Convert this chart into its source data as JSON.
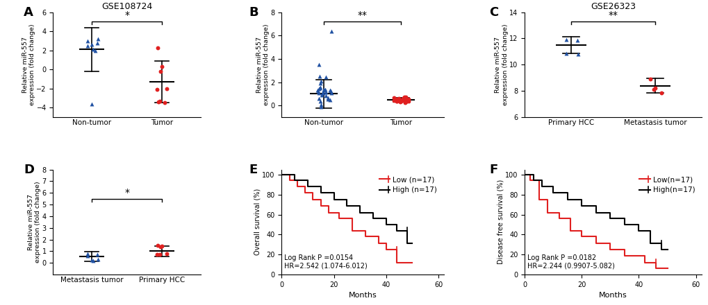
{
  "panel_A": {
    "title": "GSE108724",
    "ylabel": "Relative miR-557\nexpression (fold change)",
    "groups": [
      "Non-tumor",
      "Tumor"
    ],
    "means": [
      2.1,
      -1.3
    ],
    "sds": [
      2.3,
      2.2
    ],
    "non_tumor_points": [
      3.0,
      2.8,
      2.5,
      3.2,
      2.6,
      2.1,
      2.0,
      -3.6
    ],
    "tumor_points": [
      2.3,
      0.3,
      -0.2,
      -2.0,
      -2.1,
      -3.3,
      -3.4,
      -3.5
    ],
    "ylim": [
      -5,
      6
    ],
    "yticks": [
      -4,
      -2,
      0,
      2,
      4,
      6
    ],
    "sig": "*"
  },
  "panel_B": {
    "title": "",
    "ylabel": "Relative miR-557\nexpression (fold change)",
    "groups": [
      "Non-tumor",
      "Tumor"
    ],
    "means": [
      1.0,
      0.5
    ],
    "sds": [
      1.2,
      0.18
    ],
    "non_tumor_mean": 1.0,
    "tumor_mean": 0.5,
    "ylim": [
      -1,
      8
    ],
    "yticks": [
      0,
      2,
      4,
      6,
      8
    ],
    "sig": "**"
  },
  "panel_C": {
    "title": "GSE26323",
    "ylabel": "Relative miR-557\nexpression (fold change)",
    "groups": [
      "Primary HCC",
      "Metastasis tumor"
    ],
    "means": [
      11.5,
      8.4
    ],
    "sds": [
      0.65,
      0.55
    ],
    "primary_points": [
      11.9,
      11.85,
      10.85,
      10.8
    ],
    "metastasis_points": [
      8.9,
      8.2,
      8.1,
      7.85
    ],
    "ylim": [
      6,
      14
    ],
    "yticks": [
      6,
      8,
      10,
      12,
      14
    ],
    "sig": "**"
  },
  "panel_D": {
    "title": "",
    "ylabel": "Relative miR-557\nexpression (fold change)",
    "groups": [
      "Metastasis tumor",
      "Primary HCC"
    ],
    "means": [
      0.55,
      1.0
    ],
    "sds": [
      0.4,
      0.45
    ],
    "metastasis_points": [
      0.8,
      0.7,
      0.6,
      0.3,
      0.25,
      0.2
    ],
    "primary_points": [
      1.5,
      1.45,
      1.4,
      0.8,
      0.75,
      0.7
    ],
    "ylim": [
      -1,
      8
    ],
    "yticks": [
      0,
      1,
      2,
      3,
      4,
      5,
      6,
      7,
      8
    ],
    "sig": "*"
  },
  "panel_E": {
    "xlabel": "Months",
    "ylabel": "Overall survival (%)",
    "legend_low": "Low (n=17)",
    "legend_high": "High (n=17)",
    "annotation": "Log Rank P =0.0154\nHR=2.542 (1.074-6.012)",
    "low_x": [
      0,
      3,
      3,
      6,
      6,
      9,
      9,
      12,
      12,
      15,
      15,
      18,
      18,
      22,
      22,
      27,
      27,
      32,
      32,
      37,
      37,
      40,
      40,
      44,
      44,
      50
    ],
    "low_y": [
      100,
      100,
      94,
      94,
      88,
      88,
      82,
      82,
      75,
      75,
      69,
      69,
      62,
      62,
      56,
      56,
      44,
      44,
      38,
      38,
      31,
      31,
      25,
      25,
      12,
      12
    ],
    "high_x": [
      0,
      5,
      5,
      10,
      10,
      15,
      15,
      20,
      20,
      25,
      25,
      30,
      30,
      35,
      35,
      40,
      40,
      44,
      44,
      48,
      48,
      50
    ],
    "high_y": [
      100,
      100,
      94,
      94,
      88,
      88,
      82,
      82,
      75,
      75,
      69,
      69,
      62,
      62,
      56,
      56,
      50,
      50,
      44,
      44,
      31,
      31
    ],
    "censor_low_x": [
      44
    ],
    "censor_low_y": [
      25
    ],
    "censor_high_x": [
      48
    ],
    "censor_high_y": [
      44
    ],
    "xlim": [
      0,
      62
    ],
    "ylim": [
      0,
      105
    ],
    "xticks": [
      0,
      20,
      40,
      60
    ],
    "yticks": [
      0,
      20,
      40,
      60,
      80,
      100
    ]
  },
  "panel_F": {
    "xlabel": "Months",
    "ylabel": "Disease free survival (%)",
    "legend_low": "Low(n=17)",
    "legend_high": "High(n=17)",
    "annotation": "Log Rank P =0.0182\nHR=2.244 (0.9907-5.082)",
    "low_x": [
      0,
      2,
      2,
      5,
      5,
      8,
      8,
      12,
      12,
      16,
      16,
      20,
      20,
      25,
      25,
      30,
      30,
      35,
      35,
      42,
      42,
      46,
      46,
      50
    ],
    "low_y": [
      100,
      100,
      94,
      94,
      75,
      75,
      62,
      62,
      56,
      56,
      44,
      44,
      38,
      38,
      31,
      31,
      25,
      25,
      19,
      19,
      12,
      12,
      6,
      6
    ],
    "high_x": [
      0,
      3,
      3,
      6,
      6,
      10,
      10,
      15,
      15,
      20,
      20,
      25,
      25,
      30,
      30,
      35,
      35,
      40,
      40,
      44,
      44,
      48,
      48,
      50
    ],
    "high_y": [
      100,
      100,
      94,
      94,
      88,
      88,
      82,
      82,
      75,
      75,
      69,
      69,
      62,
      62,
      56,
      56,
      50,
      50,
      44,
      44,
      31,
      31,
      25,
      25
    ],
    "censor_low_x": [
      46
    ],
    "censor_low_y": [
      12
    ],
    "censor_high_x": [
      48
    ],
    "censor_high_y": [
      31
    ],
    "xlim": [
      0,
      62
    ],
    "ylim": [
      0,
      105
    ],
    "xticks": [
      0,
      20,
      40,
      60
    ],
    "yticks": [
      0,
      20,
      40,
      60,
      80,
      100
    ]
  },
  "colors": {
    "blue": "#2152a3",
    "red": "#e02020",
    "black": "#000000"
  }
}
